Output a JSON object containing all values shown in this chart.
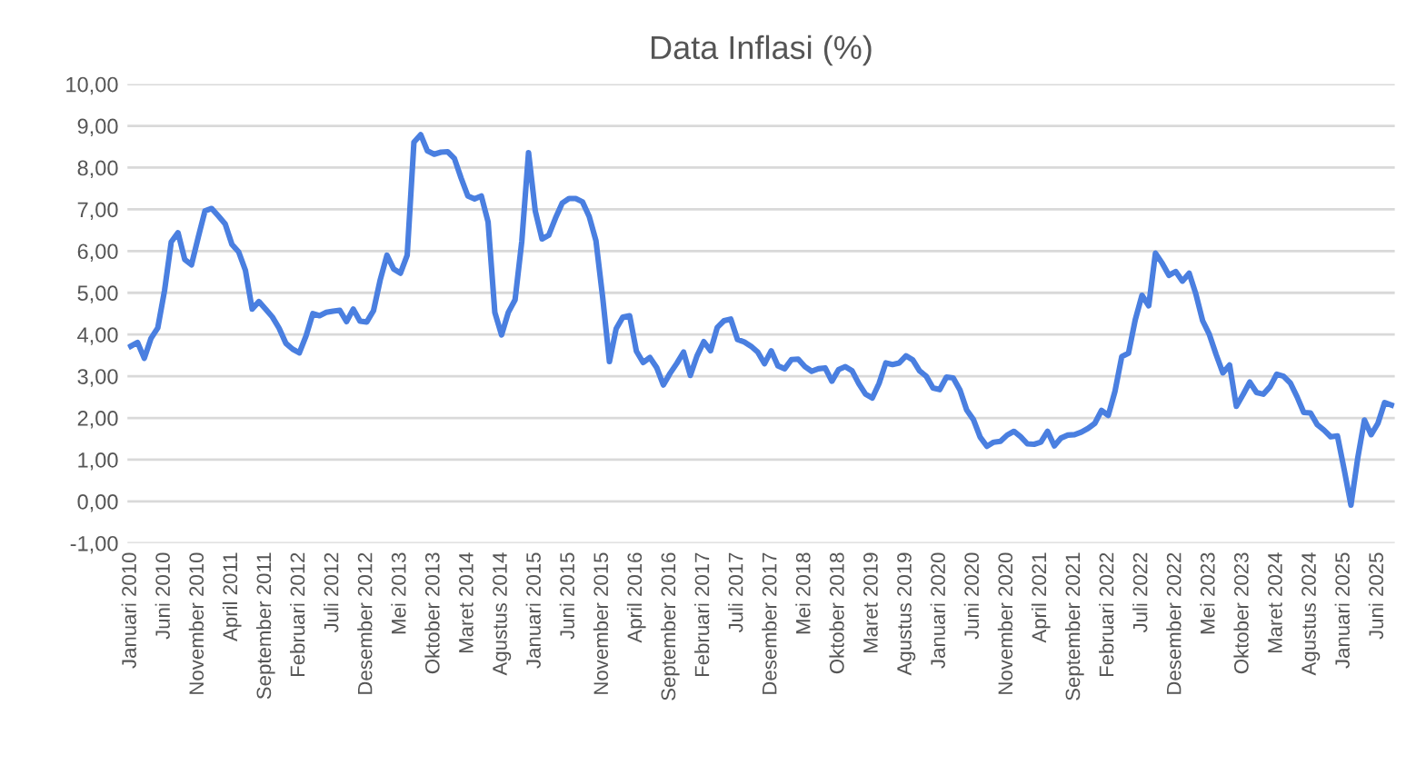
{
  "chart_data": {
    "type": "line",
    "title": "Data Inflasi (%)",
    "categories": [
      "Januari 2010",
      null,
      null,
      null,
      null,
      "Juni 2010",
      null,
      null,
      null,
      null,
      "November 2010",
      null,
      null,
      null,
      null,
      "April 2011",
      null,
      null,
      null,
      null,
      "September 2011",
      null,
      null,
      null,
      null,
      "Februari 2012",
      null,
      null,
      null,
      null,
      "Juli 2012",
      null,
      null,
      null,
      null,
      "Desember 2012",
      null,
      null,
      null,
      null,
      "Mei 2013",
      null,
      null,
      null,
      null,
      "Oktober 2013",
      null,
      null,
      null,
      null,
      "Maret 2014",
      null,
      null,
      null,
      null,
      "Agustus 2014",
      null,
      null,
      null,
      null,
      "Januari 2015",
      null,
      null,
      null,
      null,
      "Juni 2015",
      null,
      null,
      null,
      null,
      "November 2015",
      null,
      null,
      null,
      null,
      "April 2016",
      null,
      null,
      null,
      null,
      "September 2016",
      null,
      null,
      null,
      null,
      "Februari 2017",
      null,
      null,
      null,
      null,
      "Juli 2017",
      null,
      null,
      null,
      null,
      "Desember 2017",
      null,
      null,
      null,
      null,
      "Mei 2018",
      null,
      null,
      null,
      null,
      "Oktober 2018",
      null,
      null,
      null,
      null,
      "Maret 2019",
      null,
      null,
      null,
      null,
      "Agustus 2019",
      null,
      null,
      null,
      null,
      "Januari 2020",
      null,
      null,
      null,
      null,
      "Juni 2020",
      null,
      null,
      null,
      null,
      "November 2020",
      null,
      null,
      null,
      null,
      "April 2021",
      null,
      null,
      null,
      null,
      "September 2021",
      null,
      null,
      null,
      null,
      "Februari 2022",
      null,
      null,
      null,
      null,
      "Juli 2022",
      null,
      null,
      null,
      null,
      "Desember 2022",
      null,
      null,
      null,
      null,
      "Mei 2023",
      null,
      null,
      null,
      null,
      "Oktober 2023",
      null,
      null,
      null,
      null,
      "Maret 2024",
      null,
      null,
      null,
      null,
      "Agustus 2024",
      null,
      null,
      null,
      null,
      "Januari 2025",
      null,
      null,
      null,
      null,
      "Juni 2025",
      null,
      null
    ],
    "series": [
      {
        "color": "#4a7fe0",
        "values": [
          3.72,
          3.81,
          3.43,
          3.91,
          4.16,
          5.05,
          6.22,
          6.44,
          5.8,
          5.67,
          6.33,
          6.96,
          7.02,
          6.84,
          6.65,
          6.16,
          5.98,
          5.54,
          4.61,
          4.79,
          4.61,
          4.42,
          4.15,
          3.79,
          3.65,
          3.56,
          3.97,
          4.5,
          4.45,
          4.53,
          4.56,
          4.58,
          4.31,
          4.61,
          4.32,
          4.3,
          4.57,
          5.31,
          5.9,
          5.57,
          5.47,
          5.9,
          8.61,
          8.79,
          8.4,
          8.32,
          8.37,
          8.38,
          8.22,
          7.75,
          7.32,
          7.25,
          7.32,
          6.7,
          4.53,
          3.99,
          4.53,
          4.83,
          6.23,
          8.36,
          6.96,
          6.29,
          6.38,
          6.79,
          7.15,
          7.26,
          7.26,
          7.18,
          6.83,
          6.25,
          4.89,
          3.35,
          4.14,
          4.42,
          4.45,
          3.6,
          3.33,
          3.45,
          3.21,
          2.79,
          3.07,
          3.31,
          3.58,
          3.02,
          3.49,
          3.83,
          3.61,
          4.17,
          4.33,
          4.37,
          3.88,
          3.82,
          3.72,
          3.58,
          3.3,
          3.61,
          3.25,
          3.18,
          3.4,
          3.41,
          3.23,
          3.12,
          3.18,
          3.2,
          2.88,
          3.16,
          3.23,
          3.13,
          2.82,
          2.57,
          2.48,
          2.83,
          3.32,
          3.28,
          3.32,
          3.49,
          3.39,
          3.13,
          3.0,
          2.72,
          2.68,
          2.98,
          2.96,
          2.67,
          2.19,
          1.96,
          1.54,
          1.32,
          1.42,
          1.44,
          1.59,
          1.68,
          1.55,
          1.38,
          1.37,
          1.42,
          1.68,
          1.33,
          1.52,
          1.59,
          1.6,
          1.66,
          1.75,
          1.87,
          2.18,
          2.06,
          2.64,
          3.47,
          3.55,
          4.35,
          4.94,
          4.69,
          5.95,
          5.71,
          5.42,
          5.51,
          5.28,
          5.47,
          4.97,
          4.33,
          4.0,
          3.52,
          3.08,
          3.27,
          2.28,
          2.56,
          2.86,
          2.61,
          2.57,
          2.75,
          3.05,
          3.0,
          2.84,
          2.51,
          2.13,
          2.12,
          1.84,
          1.71,
          1.55,
          1.57,
          0.76,
          -0.09,
          1.03,
          1.95,
          1.6,
          1.87,
          2.37,
          2.31
        ]
      }
    ],
    "ylim": [
      -1,
      10
    ],
    "yticks": [
      {
        "value": -1,
        "label": "-1,00"
      },
      {
        "value": 0,
        "label": "0,00"
      },
      {
        "value": 1,
        "label": "1,00"
      },
      {
        "value": 2,
        "label": "2,00"
      },
      {
        "value": 3,
        "label": "3,00"
      },
      {
        "value": 4,
        "label": "4,00"
      },
      {
        "value": 5,
        "label": "5,00"
      },
      {
        "value": 6,
        "label": "6,00"
      },
      {
        "value": 7,
        "label": "7,00"
      },
      {
        "value": 8,
        "label": "8,00"
      },
      {
        "value": 9,
        "label": "9,00"
      },
      {
        "value": 10,
        "label": "10,00"
      }
    ],
    "grid": "y",
    "marker": "none",
    "line_style": "solid"
  }
}
